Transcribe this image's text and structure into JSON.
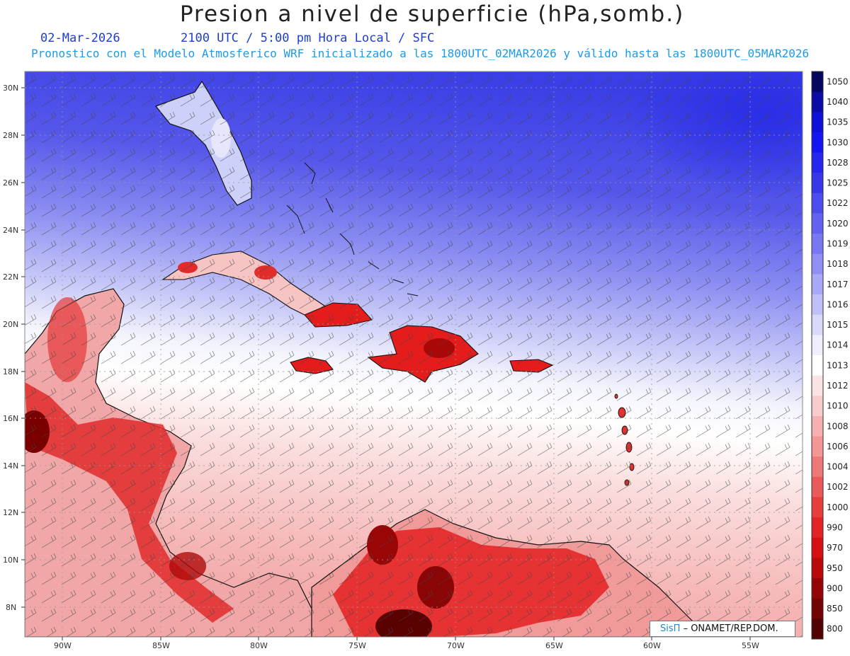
{
  "header": {
    "title": "Presion a nivel de superficie (hPa,somb.)",
    "date": "02-Mar-2026",
    "valid_time": "2100 UTC / 5:00 pm Hora Local / SFC",
    "subtitle": "Pronostico con el Modelo Atmosferico WRF inicializado a las 1800UTC_02MAR2026 y válido hasta las  1800UTC_05MAR2026"
  },
  "map": {
    "lat_ticks": [
      "30N",
      "28N",
      "26N",
      "24N",
      "22N",
      "20N",
      "18N",
      "16N",
      "14N",
      "12N",
      "10N",
      "8N"
    ],
    "lon_ticks": [
      "90W",
      "85W",
      "80W",
      "75W",
      "70W",
      "65W",
      "60W",
      "55W"
    ],
    "regions": [
      {
        "name": "Florida"
      },
      {
        "name": "Cuba"
      },
      {
        "name": "Jamaica"
      },
      {
        "name": "Hispaniola"
      },
      {
        "name": "Puerto Rico"
      },
      {
        "name": "Yucatan"
      },
      {
        "name": "Central America"
      },
      {
        "name": "South America"
      },
      {
        "name": "Bahamas"
      },
      {
        "name": "Lesser Antilles"
      }
    ]
  },
  "colorbar": {
    "labels": [
      "1050",
      "1040",
      "1035",
      "1030",
      "1028",
      "1025",
      "1022",
      "1020",
      "1019",
      "1018",
      "1017",
      "1016",
      "1015",
      "1014",
      "1013",
      "1012",
      "1010",
      "1008",
      "1006",
      "1004",
      "1002",
      "1000",
      "990",
      "970",
      "950",
      "900",
      "850",
      "800"
    ],
    "colors": [
      "#06065e",
      "#0b0ba6",
      "#1010d6",
      "#1515f2",
      "#2626ee",
      "#3737ea",
      "#4d4dee",
      "#6262f0",
      "#7878f2",
      "#9090f4",
      "#a8a8f6",
      "#c0c0f8",
      "#d8d8fa",
      "#eeeefc",
      "#ffffff",
      "#fbe3e3",
      "#f8cccc",
      "#f5b1b1",
      "#f29696",
      "#ee7777",
      "#ea5a5a",
      "#e63d3d",
      "#e22424",
      "#d41010",
      "#b80a0a",
      "#940606",
      "#720404",
      "#520202"
    ]
  },
  "credit": {
    "brand": "SisΠ",
    "text": "– ONAMET/REP.DOM."
  },
  "colors": {
    "high": "#2f3ae8",
    "mid": "#ffffff",
    "low": "#e41c1c",
    "land_lowest": "#6e0000"
  }
}
